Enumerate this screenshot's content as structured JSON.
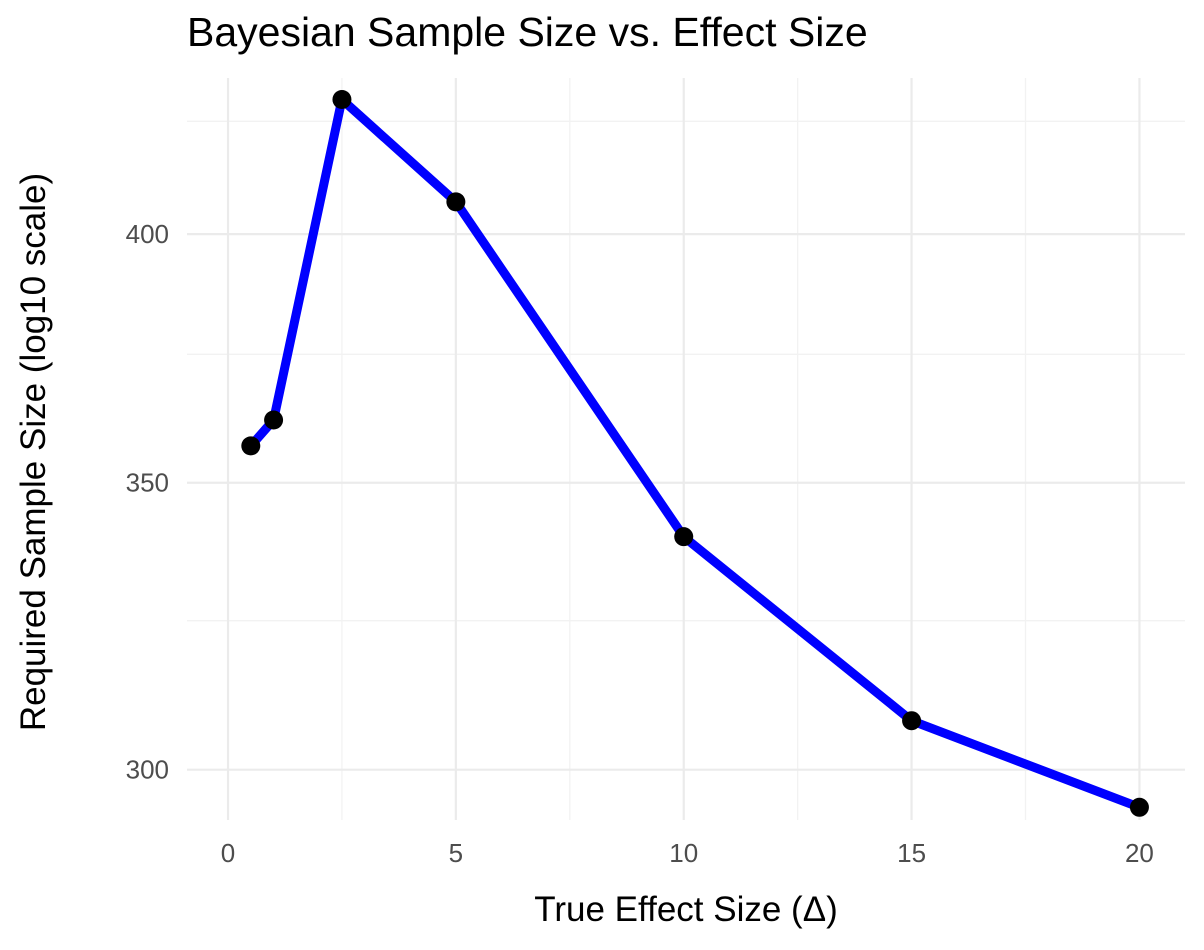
{
  "chart_data": {
    "type": "line",
    "title": "Bayesian Sample Size vs. Effect Size",
    "xlabel": "True Effect Size (Δ)",
    "ylabel": "Required Sample Size (log10 scale)",
    "x": [
      0.5,
      1,
      2.5,
      5,
      10,
      15,
      20
    ],
    "series": [
      {
        "values": [
          357,
          362,
          430,
          407,
          340,
          308,
          294
        ]
      }
    ],
    "x_ticks": [
      "0",
      "5",
      "10",
      "15",
      "20"
    ],
    "y_ticks": [
      "300",
      "350",
      "400"
    ],
    "xlim": [
      -0.9,
      21.0
    ],
    "ylim": [
      292,
      435
    ],
    "y_scale": "log10",
    "grid": true,
    "legend": "none",
    "colors": {
      "line": "#0000ff",
      "points": "#000000",
      "grid_major": "#ebebeb",
      "grid_minor": "#f2f2f2",
      "tick_text": "#4d4d4d"
    }
  }
}
